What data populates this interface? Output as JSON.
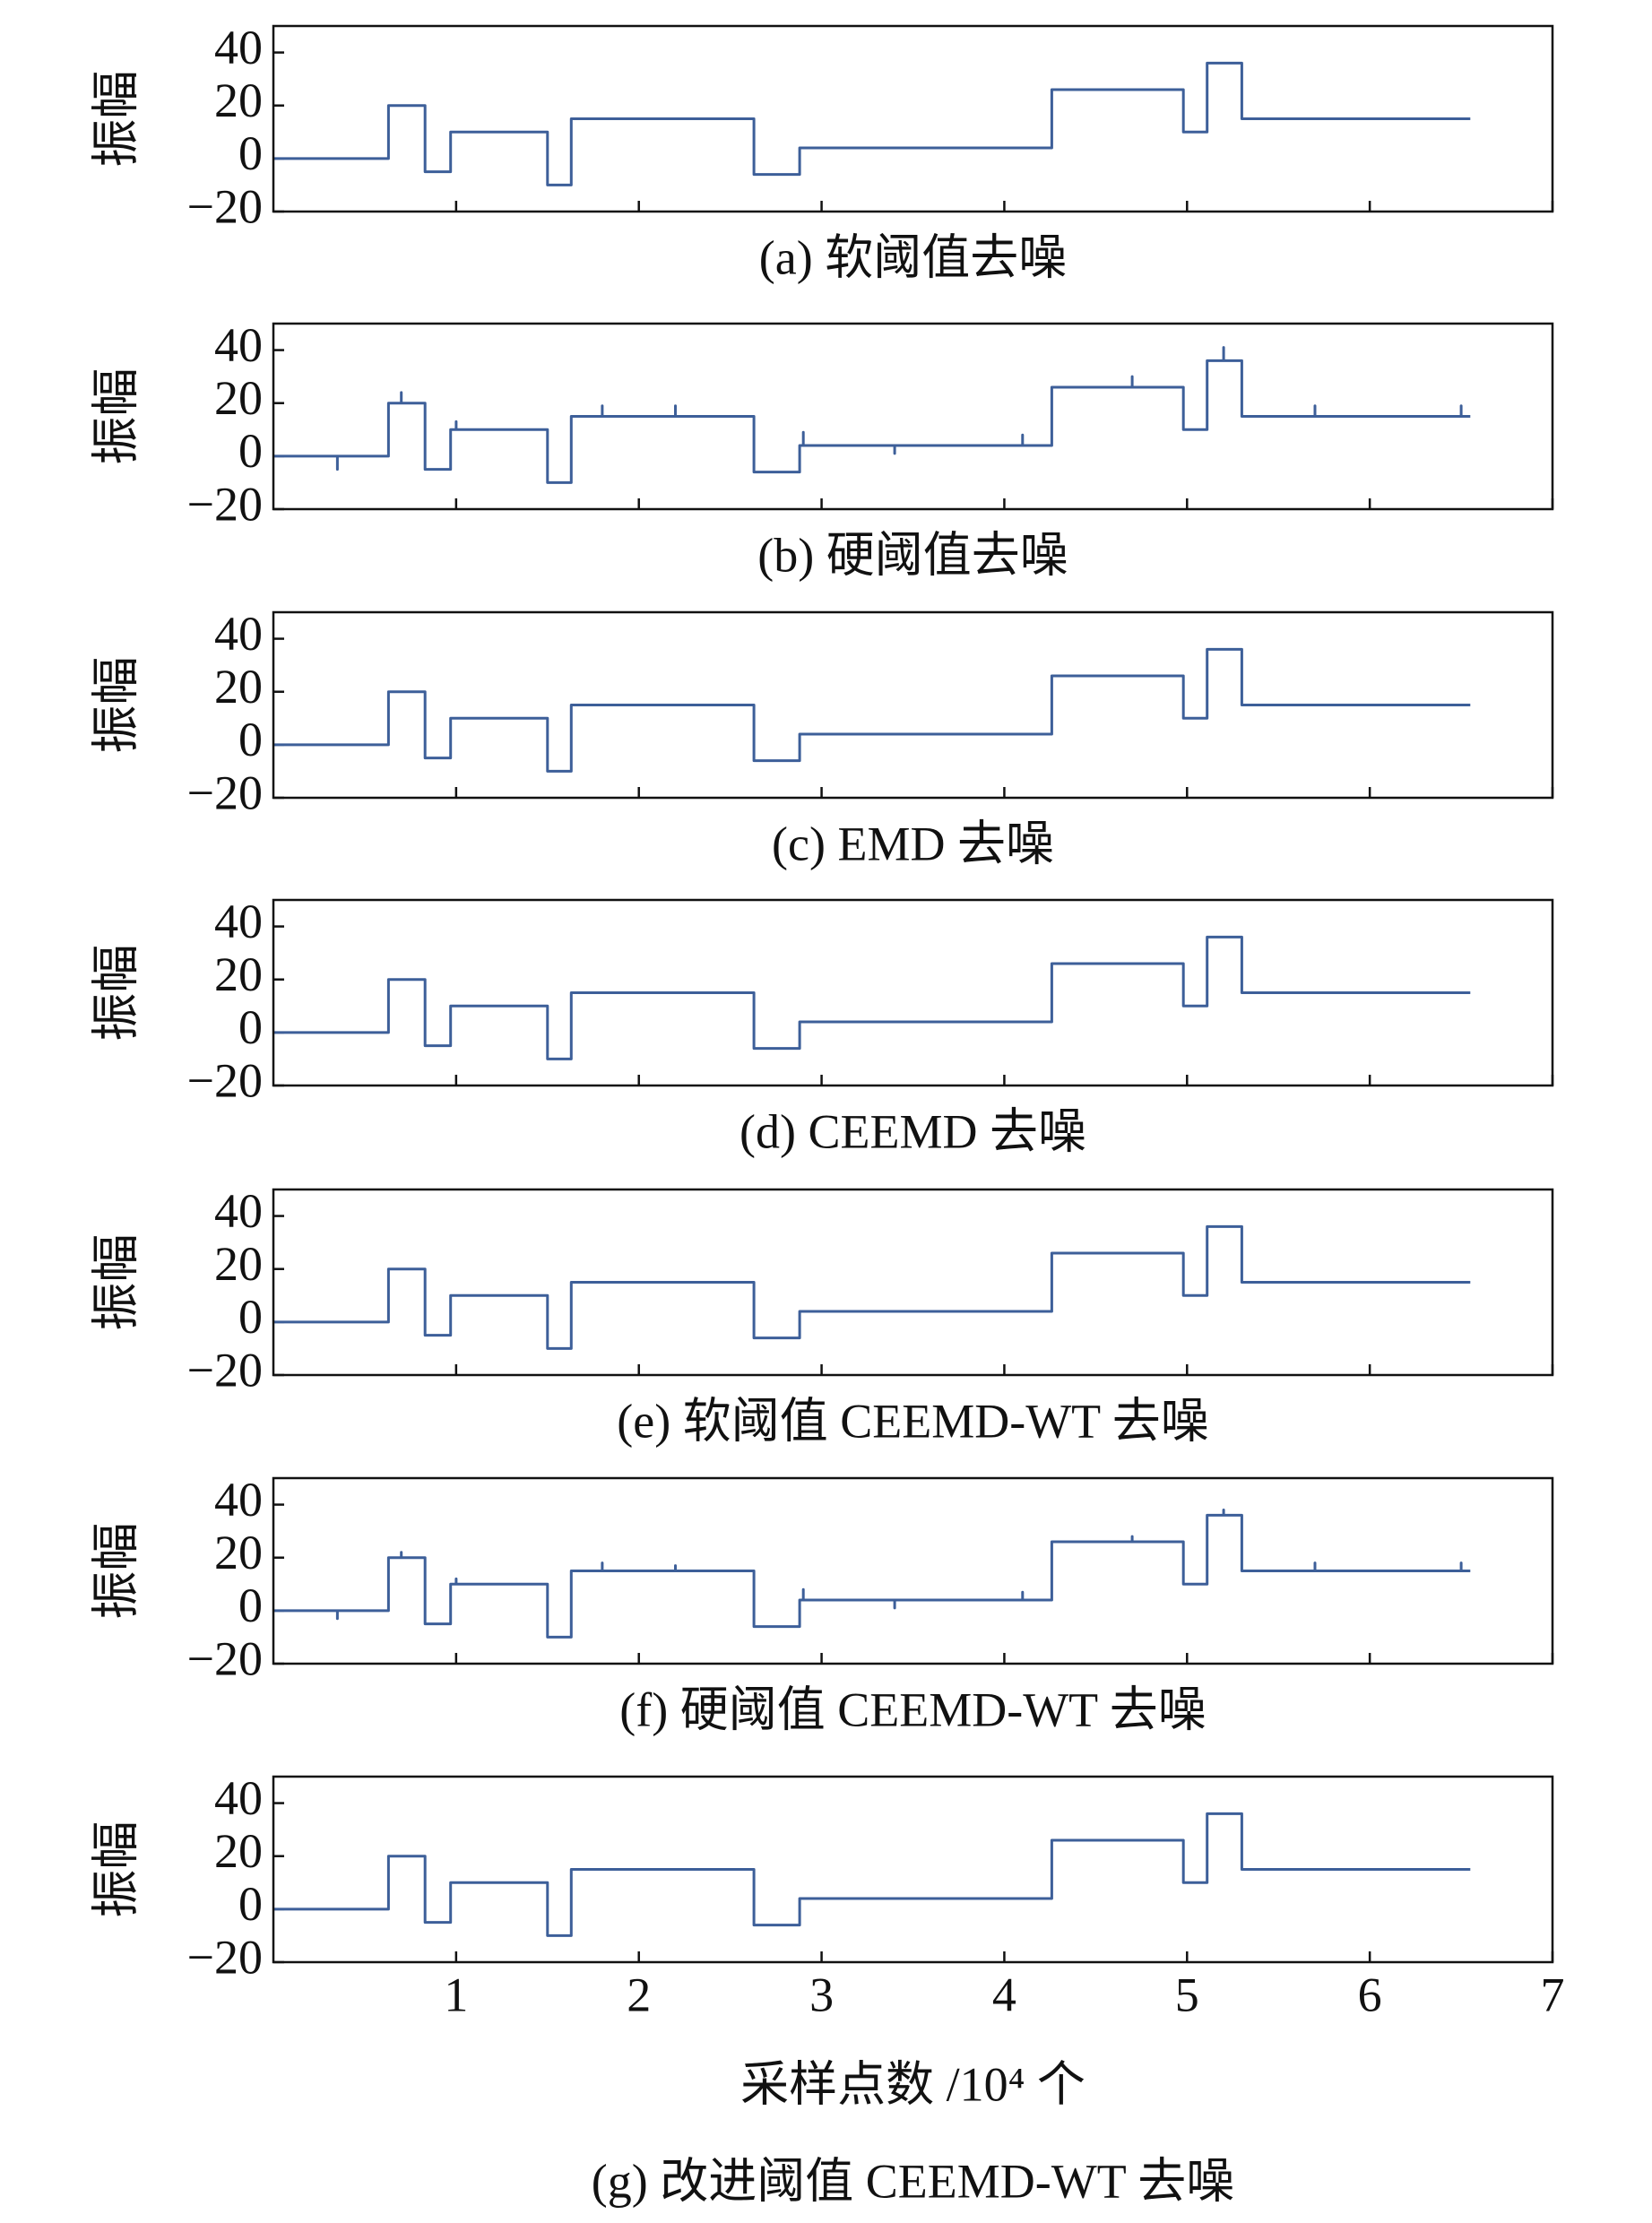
{
  "chart_data": [
    {
      "type": "line",
      "title": "(a) 软阈值去噪",
      "ylabel": "振幅",
      "xlim": [
        0,
        7
      ],
      "ylim": [
        -20,
        50
      ],
      "xticks": [
        1,
        2,
        3,
        4,
        5,
        6,
        7
      ],
      "xtick_labels": false,
      "yticks": [
        {
          "value": -20,
          "label": "−20"
        },
        0,
        20,
        40
      ],
      "color": "#3d5f99",
      "x": [
        0,
        0.63,
        0.63,
        0.83,
        0.83,
        0.97,
        0.97,
        1.5,
        1.5,
        1.63,
        1.63,
        2.63,
        2.63,
        2.88,
        2.88,
        4.26,
        4.26,
        4.98,
        4.98,
        5.11,
        5.11,
        5.3,
        5.3,
        6.55
      ],
      "values": [
        0,
        0,
        20,
        20,
        -5,
        -5,
        10,
        10,
        -10,
        -10,
        15,
        15,
        -6,
        -6,
        4,
        4,
        26,
        26,
        10,
        10,
        36,
        36,
        15,
        15
      ]
    },
    {
      "type": "line",
      "title": "(b) 硬阈值去噪",
      "ylabel": "振幅",
      "xlim": [
        0,
        7
      ],
      "ylim": [
        -20,
        50
      ],
      "xticks": [
        1,
        2,
        3,
        4,
        5,
        6,
        7
      ],
      "xtick_labels": false,
      "yticks": [
        {
          "value": -20,
          "label": "−20"
        },
        0,
        20,
        40
      ],
      "color": "#3d5f99",
      "x": [
        0,
        0.35,
        0.35,
        0.35,
        0.63,
        0.63,
        0.7,
        0.7,
        0.7,
        0.83,
        0.83,
        0.97,
        0.97,
        1.0,
        1.0,
        1.0,
        1.5,
        1.5,
        1.63,
        1.63,
        1.8,
        1.8,
        1.8,
        2.2,
        2.2,
        2.2,
        2.63,
        2.63,
        2.88,
        2.88,
        2.9,
        2.9,
        2.9,
        3.4,
        3.4,
        3.4,
        4.1,
        4.1,
        4.1,
        4.26,
        4.26,
        4.7,
        4.7,
        4.7,
        4.98,
        4.98,
        5.11,
        5.11,
        5.2,
        5.2,
        5.2,
        5.3,
        5.3,
        5.7,
        5.7,
        5.7,
        6.5,
        6.5,
        6.5,
        6.55
      ],
      "values": [
        0,
        0,
        -5,
        0,
        0,
        20,
        20,
        24,
        20,
        20,
        -5,
        -5,
        10,
        10,
        13,
        10,
        10,
        -10,
        -10,
        15,
        15,
        19,
        15,
        15,
        19,
        15,
        15,
        -6,
        -6,
        4,
        4,
        9,
        4,
        4,
        1,
        4,
        4,
        8,
        4,
        4,
        26,
        26,
        30,
        26,
        26,
        10,
        10,
        36,
        36,
        41,
        36,
        36,
        15,
        15,
        19,
        15,
        15,
        19,
        15,
        15
      ]
    },
    {
      "type": "line",
      "title": "(c) EMD 去噪",
      "ylabel": "振幅",
      "xlim": [
        0,
        7
      ],
      "ylim": [
        -20,
        50
      ],
      "xticks": [
        1,
        2,
        3,
        4,
        5,
        6,
        7
      ],
      "xtick_labels": false,
      "yticks": [
        {
          "value": -20,
          "label": "−20"
        },
        0,
        20,
        40
      ],
      "color": "#3d5f99",
      "x": [
        0,
        0.63,
        0.63,
        0.83,
        0.83,
        0.97,
        0.97,
        1.5,
        1.5,
        1.63,
        1.63,
        2.63,
        2.63,
        2.88,
        2.88,
        4.26,
        4.26,
        4.98,
        4.98,
        5.11,
        5.11,
        5.3,
        5.3,
        6.55
      ],
      "values": [
        0,
        0,
        20,
        20,
        -5,
        -5,
        10,
        10,
        -10,
        -10,
        15,
        15,
        -6,
        -6,
        4,
        4,
        26,
        26,
        10,
        10,
        36,
        36,
        15,
        15
      ]
    },
    {
      "type": "line",
      "title": "(d) CEEMD 去噪",
      "ylabel": "振幅",
      "xlim": [
        0,
        7
      ],
      "ylim": [
        -20,
        50
      ],
      "xticks": [
        1,
        2,
        3,
        4,
        5,
        6,
        7
      ],
      "xtick_labels": false,
      "yticks": [
        {
          "value": -20,
          "label": "−20"
        },
        0,
        20,
        40
      ],
      "color": "#3d5f99",
      "x": [
        0,
        0.63,
        0.63,
        0.83,
        0.83,
        0.97,
        0.97,
        1.5,
        1.5,
        1.63,
        1.63,
        2.63,
        2.63,
        2.88,
        2.88,
        4.26,
        4.26,
        4.98,
        4.98,
        5.11,
        5.11,
        5.3,
        5.3,
        6.55
      ],
      "values": [
        0,
        0,
        20,
        20,
        -5,
        -5,
        10,
        10,
        -10,
        -10,
        15,
        15,
        -6,
        -6,
        4,
        4,
        26,
        26,
        10,
        10,
        36,
        36,
        15,
        15
      ]
    },
    {
      "type": "line",
      "title": "(e) 软阈值 CEEMD-WT 去噪",
      "ylabel": "振幅",
      "xlim": [
        0,
        7
      ],
      "ylim": [
        -20,
        50
      ],
      "xticks": [
        1,
        2,
        3,
        4,
        5,
        6,
        7
      ],
      "xtick_labels": false,
      "yticks": [
        {
          "value": -20,
          "label": "−20"
        },
        0,
        20,
        40
      ],
      "color": "#3d5f99",
      "x": [
        0,
        0.63,
        0.63,
        0.83,
        0.83,
        0.97,
        0.97,
        1.5,
        1.5,
        1.63,
        1.63,
        2.63,
        2.63,
        2.88,
        2.88,
        4.26,
        4.26,
        4.98,
        4.98,
        5.11,
        5.11,
        5.3,
        5.3,
        6.55
      ],
      "values": [
        0,
        0,
        20,
        20,
        -5,
        -5,
        10,
        10,
        -10,
        -10,
        15,
        15,
        -6,
        -6,
        4,
        4,
        26,
        26,
        10,
        10,
        36,
        36,
        15,
        15
      ]
    },
    {
      "type": "line",
      "title": "(f) 硬阈值 CEEMD-WT 去噪",
      "ylabel": "振幅",
      "xlim": [
        0,
        7
      ],
      "ylim": [
        -20,
        50
      ],
      "xticks": [
        1,
        2,
        3,
        4,
        5,
        6,
        7
      ],
      "xtick_labels": false,
      "yticks": [
        {
          "value": -20,
          "label": "−20"
        },
        0,
        20,
        40
      ],
      "color": "#3d5f99",
      "x": [
        0,
        0.35,
        0.35,
        0.35,
        0.63,
        0.63,
        0.7,
        0.7,
        0.7,
        0.83,
        0.83,
        0.97,
        0.97,
        1.0,
        1.0,
        1.0,
        1.5,
        1.5,
        1.63,
        1.63,
        1.8,
        1.8,
        1.8,
        2.2,
        2.2,
        2.2,
        2.63,
        2.63,
        2.88,
        2.88,
        2.9,
        2.9,
        2.9,
        3.4,
        3.4,
        3.4,
        4.1,
        4.1,
        4.1,
        4.26,
        4.26,
        4.7,
        4.7,
        4.7,
        4.98,
        4.98,
        5.11,
        5.11,
        5.2,
        5.2,
        5.2,
        5.3,
        5.3,
        5.7,
        5.7,
        5.7,
        6.5,
        6.5,
        6.5,
        6.55
      ],
      "values": [
        0,
        0,
        -3,
        0,
        0,
        20,
        20,
        22,
        20,
        20,
        -5,
        -5,
        10,
        10,
        12,
        10,
        10,
        -10,
        -10,
        15,
        15,
        18,
        15,
        15,
        17,
        15,
        15,
        -6,
        -6,
        4,
        4,
        8,
        4,
        4,
        1,
        4,
        4,
        7,
        4,
        4,
        26,
        26,
        28,
        26,
        26,
        10,
        10,
        36,
        36,
        38,
        36,
        36,
        15,
        15,
        18,
        15,
        15,
        18,
        15,
        15
      ]
    },
    {
      "type": "line",
      "title": "(g) 改进阈值 CEEMD-WT 去噪",
      "ylabel": "振幅",
      "xlabel": "采样点数 /10⁴ 个",
      "xlim": [
        0,
        7
      ],
      "ylim": [
        -20,
        50
      ],
      "xticks": [
        1,
        2,
        3,
        4,
        5,
        6,
        7
      ],
      "xtick_labels": true,
      "yticks": [
        {
          "value": -20,
          "label": "−20"
        },
        0,
        20,
        40
      ],
      "color": "#3d5f99",
      "x": [
        0,
        0.63,
        0.63,
        0.83,
        0.83,
        0.97,
        0.97,
        1.5,
        1.5,
        1.63,
        1.63,
        2.63,
        2.63,
        2.88,
        2.88,
        4.26,
        4.26,
        4.98,
        4.98,
        5.11,
        5.11,
        5.3,
        5.3,
        6.55
      ],
      "values": [
        0,
        0,
        20,
        20,
        -5,
        -5,
        10,
        10,
        -10,
        -10,
        15,
        15,
        -6,
        -6,
        4,
        4,
        26,
        26,
        10,
        10,
        36,
        36,
        15,
        15
      ]
    }
  ]
}
